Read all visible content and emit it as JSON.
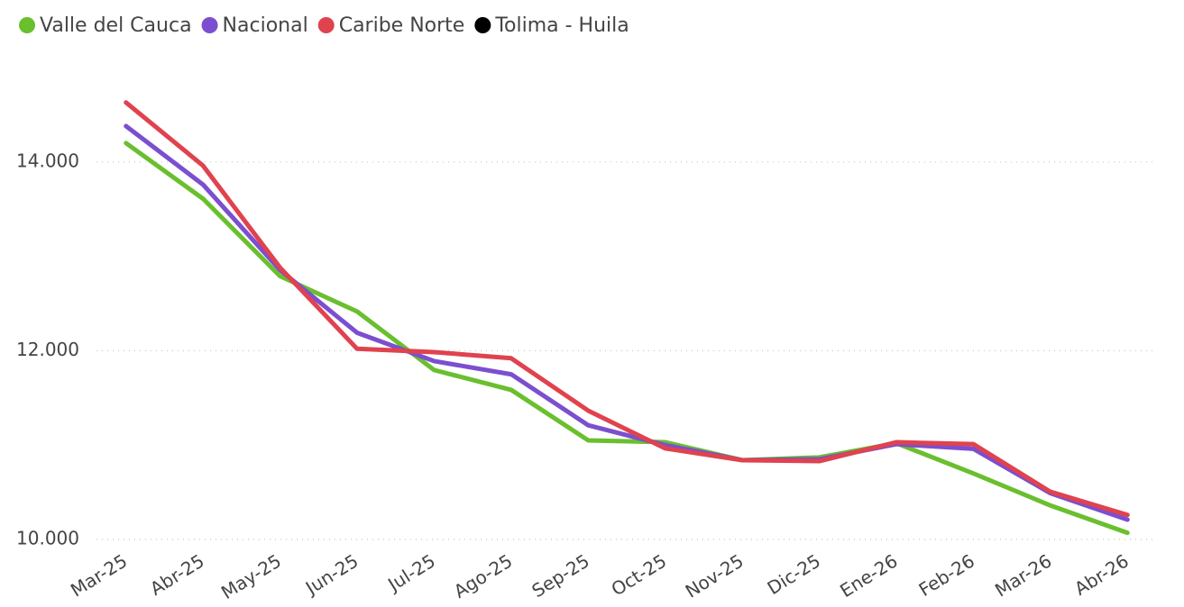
{
  "chart_data": {
    "type": "line",
    "categories": [
      "Mar-25",
      "Abr-25",
      "May-25",
      "Jun-25",
      "Jul-25",
      "Ago-25",
      "Sep-25",
      "Oct-25",
      "Nov-25",
      "Dic-25",
      "Ene-26",
      "Feb-26",
      "Mar-26",
      "Abr-26"
    ],
    "series": [
      {
        "name": "Valle del Cauca",
        "color": "#6abf2e",
        "values": [
          14200,
          13610,
          12790,
          12415,
          11795,
          11585,
          11050,
          11030,
          10840,
          10870,
          11020,
          10700,
          10360,
          10070
        ]
      },
      {
        "name": "Nacional",
        "color": "#7b4fcf",
        "values": [
          14380,
          13760,
          12855,
          12190,
          11890,
          11750,
          11210,
          11000,
          10840,
          10850,
          11010,
          10960,
          10490,
          10210
        ]
      },
      {
        "name": "Caribe Norte",
        "color": "#e0424e",
        "values": [
          14630,
          13960,
          12880,
          12020,
          11985,
          11920,
          11365,
          10965,
          10840,
          10830,
          11030,
          11010,
          10505,
          10260
        ]
      },
      {
        "name": "Tolima - Huila",
        "color": "#000000",
        "values": [
          null,
          null,
          null,
          null,
          null,
          null,
          null,
          null,
          null,
          null,
          null,
          null,
          null,
          null
        ]
      }
    ],
    "ylim": [
      10000,
      15000
    ],
    "yticks": [
      {
        "value": 10000,
        "label": "10.000"
      },
      {
        "value": 12000,
        "label": "12.000"
      },
      {
        "value": 14000,
        "label": "14.000"
      }
    ],
    "grid": true
  }
}
